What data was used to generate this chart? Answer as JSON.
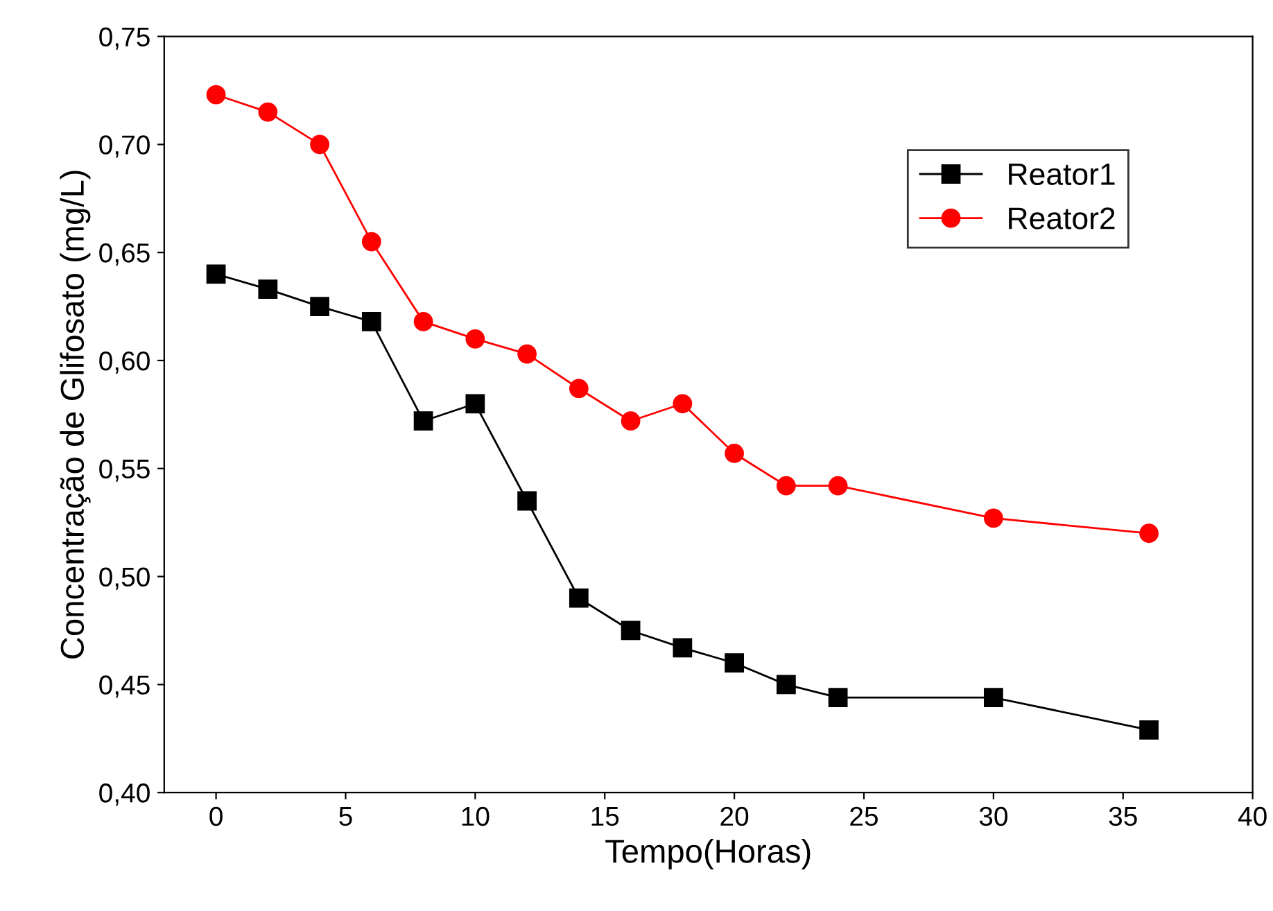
{
  "chart_data": {
    "type": "line",
    "xlabel": "Tempo(Horas)",
    "ylabel": "Concentração de Glifosato (mg/L)",
    "x": [
      0,
      2,
      4,
      6,
      8,
      10,
      12,
      14,
      16,
      18,
      20,
      22,
      24,
      30,
      36
    ],
    "series": [
      {
        "name": "Reator1",
        "color": "#000000",
        "marker": "square",
        "values": [
          0.64,
          0.633,
          0.625,
          0.618,
          0.572,
          0.58,
          0.535,
          0.49,
          0.475,
          0.467,
          0.46,
          0.45,
          0.444,
          0.444,
          0.429
        ]
      },
      {
        "name": "Reator2",
        "color": "#ff0000",
        "marker": "circle",
        "values": [
          0.723,
          0.715,
          0.7,
          0.655,
          0.618,
          0.61,
          0.603,
          0.587,
          0.572,
          0.58,
          0.557,
          0.542,
          0.542,
          0.527,
          0.52
        ]
      }
    ],
    "xlim": [
      -2,
      40
    ],
    "xticks": [
      0,
      5,
      10,
      15,
      20,
      25,
      30,
      35,
      40
    ],
    "ylim": [
      0.4,
      0.75
    ],
    "yticks": [
      {
        "value": 0.4,
        "label": "0,40"
      },
      {
        "value": 0.45,
        "label": "0,45"
      },
      {
        "value": 0.5,
        "label": "0,50"
      },
      {
        "value": 0.55,
        "label": "0,55"
      },
      {
        "value": 0.6,
        "label": "0,60"
      },
      {
        "value": 0.65,
        "label": "0,65"
      },
      {
        "value": 0.7,
        "label": "0,70"
      },
      {
        "value": 0.75,
        "label": "0,75"
      }
    ],
    "grid": false,
    "legend": "top right",
    "line_style": "solid"
  }
}
